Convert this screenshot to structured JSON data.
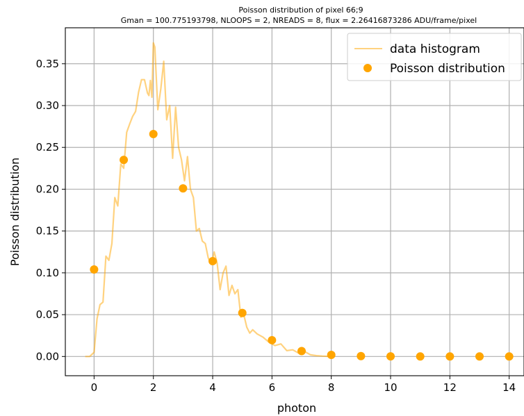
{
  "chart_data": {
    "type": "line",
    "title": "Poisson distribution of pixel 66;9",
    "subtitle": "Gman = 100.775193798, NLOOPS = 2, NREADS = 8, flux = 2.26416873286 ADU/frame/pixel",
    "xlabel": "photon",
    "ylabel": "Poisson distribution",
    "xlim": [
      -0.97,
      14.5
    ],
    "ylim": [
      -0.023,
      0.393
    ],
    "x_ticks": [
      0,
      2,
      4,
      6,
      8,
      10,
      12,
      14
    ],
    "y_ticks": [
      0.0,
      0.05,
      0.1,
      0.15,
      0.2,
      0.25,
      0.3,
      0.35
    ],
    "x_tick_labels": [
      "0",
      "2",
      "4",
      "6",
      "8",
      "10",
      "12",
      "14"
    ],
    "y_tick_labels": [
      "0.00",
      "0.05",
      "0.10",
      "0.15",
      "0.20",
      "0.25",
      "0.30",
      "0.35"
    ],
    "grid": true,
    "legend_position": "top-right",
    "series": [
      {
        "name": "data histogram",
        "kind": "line",
        "color": "#ffa500",
        "alpha": 0.5,
        "x": [
          -0.3,
          -0.15,
          0.0,
          0.1,
          0.2,
          0.3,
          0.4,
          0.5,
          0.6,
          0.7,
          0.8,
          0.9,
          1.0,
          1.1,
          1.2,
          1.3,
          1.4,
          1.5,
          1.6,
          1.7,
          1.8,
          1.85,
          1.9,
          1.95,
          2.0,
          2.05,
          2.15,
          2.25,
          2.35,
          2.45,
          2.55,
          2.65,
          2.75,
          2.85,
          2.95,
          3.05,
          3.15,
          3.25,
          3.35,
          3.45,
          3.55,
          3.65,
          3.75,
          3.85,
          3.95,
          4.05,
          4.15,
          4.25,
          4.35,
          4.45,
          4.55,
          4.65,
          4.75,
          4.85,
          4.95,
          5.05,
          5.15,
          5.25,
          5.35,
          5.5,
          5.7,
          5.9,
          6.1,
          6.3,
          6.5,
          6.7,
          6.9,
          7.1,
          7.3,
          7.5,
          7.7,
          7.9,
          8.0
        ],
        "y": [
          0.0,
          0.0,
          0.005,
          0.045,
          0.062,
          0.065,
          0.12,
          0.115,
          0.135,
          0.19,
          0.18,
          0.23,
          0.225,
          0.268,
          0.278,
          0.287,
          0.293,
          0.316,
          0.331,
          0.331,
          0.315,
          0.312,
          0.33,
          0.31,
          0.375,
          0.37,
          0.295,
          0.32,
          0.353,
          0.283,
          0.3,
          0.237,
          0.298,
          0.25,
          0.235,
          0.21,
          0.239,
          0.2,
          0.19,
          0.15,
          0.153,
          0.138,
          0.135,
          0.118,
          0.11,
          0.125,
          0.112,
          0.08,
          0.1,
          0.108,
          0.073,
          0.085,
          0.075,
          0.08,
          0.047,
          0.05,
          0.035,
          0.028,
          0.032,
          0.027,
          0.023,
          0.017,
          0.013,
          0.015,
          0.007,
          0.008,
          0.004,
          0.006,
          0.002,
          0.001,
          0.0005,
          0.0002,
          0.0
        ]
      },
      {
        "name": "Poisson distribution",
        "kind": "scatter",
        "color": "#ffa500",
        "x": [
          0,
          1,
          2,
          3,
          4,
          5,
          6,
          7,
          8,
          9,
          10,
          11,
          12,
          13,
          14
        ],
        "y": [
          0.104,
          0.235,
          0.266,
          0.201,
          0.114,
          0.052,
          0.0195,
          0.0065,
          0.0019,
          0.0005,
          0.0001,
          2e-05,
          0.0,
          0.0,
          0.0
        ]
      }
    ]
  }
}
